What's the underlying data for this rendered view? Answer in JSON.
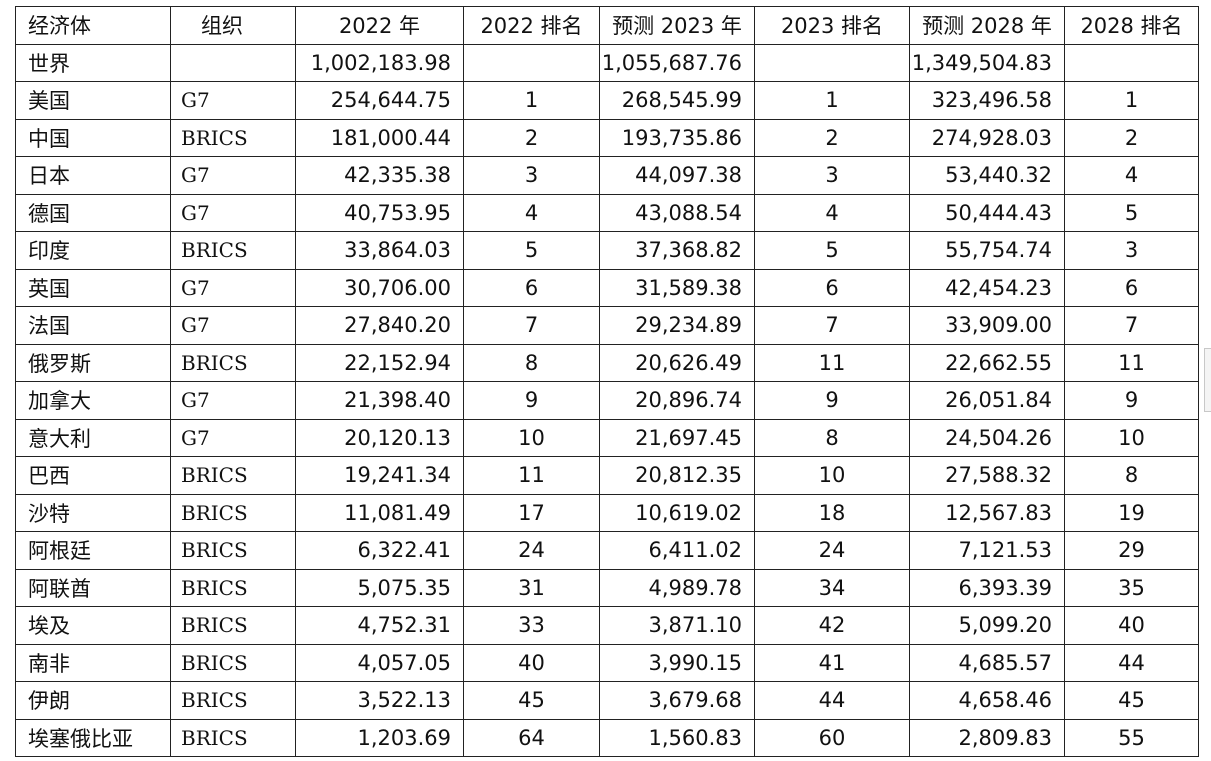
{
  "table": {
    "headers": [
      "经济体",
      "组织",
      "2022 年",
      "2022 排名",
      "预测 2023 年",
      "2023 排名",
      "预测 2028 年",
      "2028 排名"
    ],
    "rows": [
      [
        "世界",
        "",
        "1,002,183.98",
        "",
        "1,055,687.76",
        "",
        "1,349,504.83",
        ""
      ],
      [
        "美国",
        "G7",
        "254,644.75",
        "1",
        "268,545.99",
        "1",
        "323,496.58",
        "1"
      ],
      [
        "中国",
        "BRICS",
        "181,000.44",
        "2",
        "193,735.86",
        "2",
        "274,928.03",
        "2"
      ],
      [
        "日本",
        "G7",
        "42,335.38",
        "3",
        "44,097.38",
        "3",
        "53,440.32",
        "4"
      ],
      [
        "德国",
        "G7",
        "40,753.95",
        "4",
        "43,088.54",
        "4",
        "50,444.43",
        "5"
      ],
      [
        "印度",
        "BRICS",
        "33,864.03",
        "5",
        "37,368.82",
        "5",
        "55,754.74",
        "3"
      ],
      [
        "英国",
        "G7",
        "30,706.00",
        "6",
        "31,589.38",
        "6",
        "42,454.23",
        "6"
      ],
      [
        "法国",
        "G7",
        "27,840.20",
        "7",
        "29,234.89",
        "7",
        "33,909.00",
        "7"
      ],
      [
        "俄罗斯",
        "BRICS",
        "22,152.94",
        "8",
        "20,626.49",
        "11",
        "22,662.55",
        "11"
      ],
      [
        "加拿大",
        "G7",
        "21,398.40",
        "9",
        "20,896.74",
        "9",
        "26,051.84",
        "9"
      ],
      [
        "意大利",
        "G7",
        "20,120.13",
        "10",
        "21,697.45",
        "8",
        "24,504.26",
        "10"
      ],
      [
        "巴西",
        "BRICS",
        "19,241.34",
        "11",
        "20,812.35",
        "10",
        "27,588.32",
        "8"
      ],
      [
        "沙特",
        "BRICS",
        "11,081.49",
        "17",
        "10,619.02",
        "18",
        "12,567.83",
        "19"
      ],
      [
        "阿根廷",
        "BRICS",
        "6,322.41",
        "24",
        "6,411.02",
        "24",
        "7,121.53",
        "29"
      ],
      [
        "阿联酋",
        "BRICS",
        "5,075.35",
        "31",
        "4,989.78",
        "34",
        "6,393.39",
        "35"
      ],
      [
        "埃及",
        "BRICS",
        "4,752.31",
        "33",
        "3,871.10",
        "42",
        "5,099.20",
        "40"
      ],
      [
        "南非",
        "BRICS",
        "4,057.05",
        "40",
        "3,990.15",
        "41",
        "4,685.57",
        "44"
      ],
      [
        "伊朗",
        "BRICS",
        "3,522.13",
        "45",
        "3,679.68",
        "44",
        "4,658.46",
        "45"
      ],
      [
        "埃塞俄比亚",
        "BRICS",
        "1,203.69",
        "64",
        "1,560.83",
        "60",
        "2,809.83",
        "55"
      ]
    ]
  }
}
